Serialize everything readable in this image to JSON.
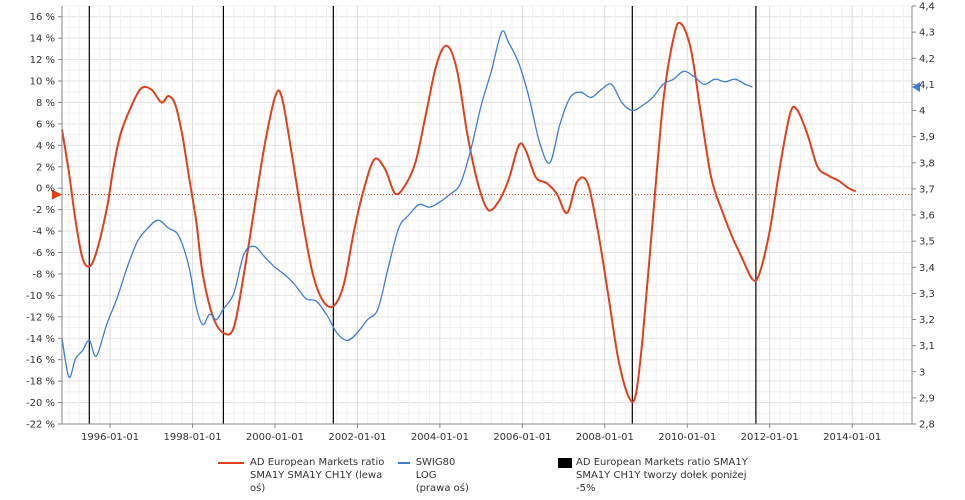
{
  "chart_data": {
    "type": "line",
    "x_range": [
      "1994-11-01",
      "2015-06-15"
    ],
    "x_ticks": [
      "1996-01-01",
      "1998-01-01",
      "2000-01-01",
      "2002-01-01",
      "2004-01-01",
      "2006-01-01",
      "2008-01-01",
      "2010-01-01",
      "2012-01-01",
      "2014-01-01"
    ],
    "y_left": {
      "min": -22,
      "max": 17,
      "ticks": [
        16,
        14,
        12,
        10,
        8,
        6,
        4,
        2,
        0,
        -2,
        -4,
        -6,
        -8,
        -10,
        -12,
        -14,
        -16,
        -18,
        -20,
        -22
      ],
      "tick_labels": [
        "16 %",
        "14 %",
        "12 %",
        "10 %",
        "8 %",
        "6 %",
        "4 %",
        "2 %",
        "0 %",
        "-2 %",
        "-4 %",
        "-6 %",
        "-8 %",
        "-10 %",
        "-12 %",
        "-14 %",
        "-16 %",
        "-18 %",
        "-20 %",
        "-22 %"
      ]
    },
    "y_right": {
      "min": 2.8,
      "max": 4.4,
      "ticks": [
        4.4,
        4.3,
        4.2,
        4.1,
        4.0,
        3.9,
        3.8,
        3.7,
        3.6,
        3.5,
        3.4,
        3.3,
        3.2,
        3.1,
        3.0,
        2.9,
        2.8
      ],
      "tick_labels": [
        "4,4",
        "4,3",
        "4,2",
        "4,1",
        "4",
        "3,9",
        "3,8",
        "3,7",
        "3,6",
        "3,5",
        "3,4",
        "3,3",
        "3,2",
        "3,1",
        "3",
        "2,9",
        "2,8"
      ]
    },
    "threshold": {
      "value": -0.6,
      "axis": "left",
      "style": "dotted"
    },
    "grid": true,
    "legend_position": "bottom",
    "series": [
      {
        "name": "AD European Markets ratio SMA1Y SMA1Y CH1Y (lewa oś)",
        "axis": "left",
        "color": "#e0401a",
        "points": [
          [
            "1994-11-01",
            5.5
          ],
          [
            "1995-01-01",
            1.5
          ],
          [
            "1995-03-01",
            -3
          ],
          [
            "1995-05-01",
            -6.5
          ],
          [
            "1995-07-01",
            -7.3
          ],
          [
            "1995-09-01",
            -6
          ],
          [
            "1995-12-01",
            -2
          ],
          [
            "1996-02-01",
            2
          ],
          [
            "1996-04-01",
            5
          ],
          [
            "1996-07-01",
            7.5
          ],
          [
            "1996-10-01",
            9.3
          ],
          [
            "1997-01-01",
            9.2
          ],
          [
            "1997-04-01",
            8
          ],
          [
            "1997-06-01",
            8.6
          ],
          [
            "1997-08-01",
            7.8
          ],
          [
            "1997-10-01",
            5
          ],
          [
            "1997-12-01",
            1
          ],
          [
            "1998-02-01",
            -3
          ],
          [
            "1998-04-01",
            -8
          ],
          [
            "1998-07-01",
            -12
          ],
          [
            "1998-10-01",
            -13.5
          ],
          [
            "1999-01-01",
            -13
          ],
          [
            "1999-04-01",
            -8
          ],
          [
            "1999-07-01",
            -2
          ],
          [
            "1999-10-01",
            4
          ],
          [
            "2000-01-01",
            8.5
          ],
          [
            "2000-03-01",
            8.5
          ],
          [
            "2000-06-01",
            3
          ],
          [
            "2000-09-01",
            -3
          ],
          [
            "2000-12-01",
            -8
          ],
          [
            "2001-03-01",
            -10.5
          ],
          [
            "2001-06-01",
            -11
          ],
          [
            "2001-09-01",
            -9
          ],
          [
            "2001-12-01",
            -4
          ],
          [
            "2002-03-01",
            0
          ],
          [
            "2002-06-01",
            2.7
          ],
          [
            "2002-09-01",
            1.8
          ],
          [
            "2002-12-01",
            -0.5
          ],
          [
            "2003-03-01",
            0.3
          ],
          [
            "2003-06-01",
            2.5
          ],
          [
            "2003-09-01",
            7
          ],
          [
            "2003-12-01",
            11.5
          ],
          [
            "2004-03-01",
            13.3
          ],
          [
            "2004-06-01",
            11
          ],
          [
            "2004-09-01",
            5
          ],
          [
            "2004-12-01",
            0.5
          ],
          [
            "2005-03-01",
            -2
          ],
          [
            "2005-06-01",
            -1.3
          ],
          [
            "2005-09-01",
            0.8
          ],
          [
            "2005-12-01",
            4
          ],
          [
            "2006-02-01",
            3.5
          ],
          [
            "2006-05-01",
            1
          ],
          [
            "2006-08-01",
            0.5
          ],
          [
            "2006-11-01",
            -0.5
          ],
          [
            "2007-02-01",
            -2.3
          ],
          [
            "2007-05-01",
            0.6
          ],
          [
            "2007-08-01",
            0.5
          ],
          [
            "2007-11-01",
            -4
          ],
          [
            "2008-02-01",
            -10
          ],
          [
            "2008-05-01",
            -16
          ],
          [
            "2008-08-01",
            -19.5
          ],
          [
            "2008-10-01",
            -19.3
          ],
          [
            "2008-12-01",
            -14
          ],
          [
            "2009-03-01",
            -3
          ],
          [
            "2009-06-01",
            8
          ],
          [
            "2009-09-01",
            14
          ],
          [
            "2009-11-01",
            15.4
          ],
          [
            "2010-02-01",
            13
          ],
          [
            "2010-05-01",
            7
          ],
          [
            "2010-08-01",
            1
          ],
          [
            "2010-11-01",
            -2
          ],
          [
            "2011-02-01",
            -4.5
          ],
          [
            "2011-05-01",
            -6.5
          ],
          [
            "2011-08-01",
            -8.5
          ],
          [
            "2011-10-01",
            -8
          ],
          [
            "2012-01-01",
            -4
          ],
          [
            "2012-04-01",
            2
          ],
          [
            "2012-07-01",
            7
          ],
          [
            "2012-09-01",
            7.3
          ],
          [
            "2012-12-01",
            5
          ],
          [
            "2013-03-01",
            2
          ],
          [
            "2013-06-01",
            1.2
          ],
          [
            "2013-09-01",
            0.7
          ],
          [
            "2013-12-01",
            0
          ],
          [
            "2014-02-01",
            -0.3
          ]
        ]
      },
      {
        "name": "SWIG80  LOG (prawa oś)",
        "axis": "right",
        "color": "#3d7fd6",
        "points": [
          [
            "1994-11-01",
            3.13
          ],
          [
            "1995-01-01",
            2.98
          ],
          [
            "1995-03-01",
            3.05
          ],
          [
            "1995-05-01",
            3.08
          ],
          [
            "1995-07-01",
            3.12
          ],
          [
            "1995-09-01",
            3.06
          ],
          [
            "1995-12-01",
            3.18
          ],
          [
            "1996-03-01",
            3.28
          ],
          [
            "1996-06-01",
            3.4
          ],
          [
            "1996-09-01",
            3.5
          ],
          [
            "1996-12-01",
            3.55
          ],
          [
            "1997-03-01",
            3.58
          ],
          [
            "1997-06-01",
            3.55
          ],
          [
            "1997-09-01",
            3.52
          ],
          [
            "1997-12-01",
            3.4
          ],
          [
            "1998-02-01",
            3.25
          ],
          [
            "1998-04-01",
            3.18
          ],
          [
            "1998-06-01",
            3.22
          ],
          [
            "1998-08-01",
            3.2
          ],
          [
            "1998-10-01",
            3.24
          ],
          [
            "1999-01-01",
            3.3
          ],
          [
            "1999-04-01",
            3.45
          ],
          [
            "1999-07-01",
            3.48
          ],
          [
            "1999-10-01",
            3.44
          ],
          [
            "2000-01-01",
            3.4
          ],
          [
            "2000-04-01",
            3.37
          ],
          [
            "2000-07-01",
            3.33
          ],
          [
            "2000-10-01",
            3.28
          ],
          [
            "2001-01-01",
            3.27
          ],
          [
            "2001-04-01",
            3.22
          ],
          [
            "2001-07-01",
            3.15
          ],
          [
            "2001-10-01",
            3.12
          ],
          [
            "2002-01-01",
            3.15
          ],
          [
            "2002-04-01",
            3.2
          ],
          [
            "2002-07-01",
            3.24
          ],
          [
            "2002-10-01",
            3.4
          ],
          [
            "2003-01-01",
            3.55
          ],
          [
            "2003-04-01",
            3.6
          ],
          [
            "2003-07-01",
            3.64
          ],
          [
            "2003-10-01",
            3.63
          ],
          [
            "2004-01-01",
            3.65
          ],
          [
            "2004-04-01",
            3.68
          ],
          [
            "2004-07-01",
            3.72
          ],
          [
            "2004-10-01",
            3.85
          ],
          [
            "2005-01-01",
            4.02
          ],
          [
            "2005-04-01",
            4.15
          ],
          [
            "2005-07-01",
            4.3
          ],
          [
            "2005-09-01",
            4.26
          ],
          [
            "2005-12-01",
            4.18
          ],
          [
            "2006-03-01",
            4.05
          ],
          [
            "2006-06-01",
            3.88
          ],
          [
            "2006-09-01",
            3.8
          ],
          [
            "2006-12-01",
            3.95
          ],
          [
            "2007-03-01",
            4.05
          ],
          [
            "2007-06-01",
            4.07
          ],
          [
            "2007-09-01",
            4.05
          ],
          [
            "2007-12-01",
            4.08
          ],
          [
            "2008-03-01",
            4.1
          ],
          [
            "2008-06-01",
            4.03
          ],
          [
            "2008-09-01",
            4.0
          ],
          [
            "2008-12-01",
            4.02
          ],
          [
            "2009-03-01",
            4.05
          ],
          [
            "2009-06-01",
            4.1
          ],
          [
            "2009-09-01",
            4.12
          ],
          [
            "2009-12-01",
            4.15
          ],
          [
            "2010-03-01",
            4.13
          ],
          [
            "2010-06-01",
            4.1
          ],
          [
            "2010-09-01",
            4.12
          ],
          [
            "2010-12-01",
            4.11
          ],
          [
            "2011-03-01",
            4.12
          ],
          [
            "2011-06-01",
            4.1
          ],
          [
            "2011-08-01",
            4.09
          ]
        ]
      }
    ],
    "bottom_markers": {
      "name": "AD European Markets ratio SMA1Y SMA1Y CH1Y tworzy dołek poniżej -5%",
      "color": "#000000",
      "dates": [
        "1995-07-01",
        "1998-10-01",
        "2001-06-01",
        "2008-09-01",
        "2011-09-01"
      ]
    },
    "legend": [
      {
        "label": "AD European Markets ratio SMA1Y SMA1Y CH1Y (lewa oś)",
        "color": "#e0401a",
        "kind": "line"
      },
      {
        "label": "SWIG80  LOG (prawa oś)",
        "color": "#3d7fd6",
        "kind": "line"
      },
      {
        "label": "AD European Markets ratio SMA1Y SMA1Y CH1Y tworzy dołek poniżej -5%",
        "color": "#000000",
        "kind": "box"
      }
    ]
  }
}
